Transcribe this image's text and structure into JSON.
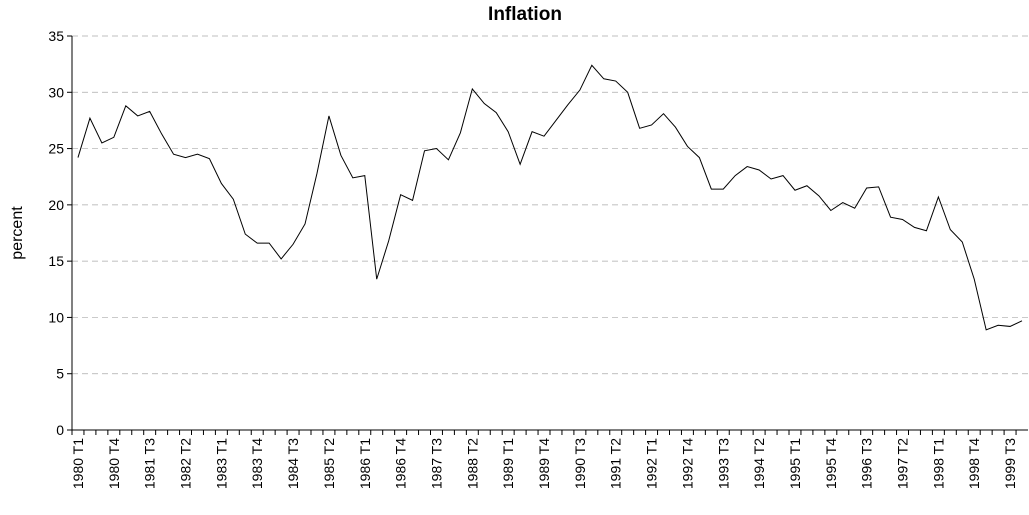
{
  "chart_data": {
    "type": "line",
    "title": "Inflation",
    "y_label": "percent",
    "categories": [
      "1980 T1",
      null,
      null,
      "1980 T4",
      null,
      null,
      "1981 T3",
      null,
      null,
      "1982 T2",
      null,
      null,
      "1983 T1",
      null,
      null,
      "1983 T4",
      null,
      null,
      "1984 T3",
      null,
      null,
      "1985 T2",
      null,
      null,
      "1986 T1",
      null,
      null,
      "1986 T4",
      null,
      null,
      "1987 T3",
      null,
      null,
      "1988 T2",
      null,
      null,
      "1989 T1",
      null,
      null,
      "1989 T4",
      null,
      null,
      "1990 T3",
      null,
      null,
      "1991 T2",
      null,
      null,
      "1992 T1",
      null,
      null,
      "1992 T4",
      null,
      null,
      "1993 T3",
      null,
      null,
      "1994 T2",
      null,
      null,
      "1995 T1",
      null,
      null,
      "1995 T4",
      null,
      null,
      "1996 T3",
      null,
      null,
      "1997 T2",
      null,
      null,
      "1998 T1",
      null,
      null,
      "1998 T4",
      null,
      null,
      "1999 T3",
      null
    ],
    "values": [
      24.2,
      27.7,
      25.5,
      26.0,
      28.8,
      27.9,
      28.3,
      26.3,
      24.5,
      24.2,
      24.5,
      24.1,
      21.9,
      20.5,
      17.4,
      16.6,
      16.6,
      15.2,
      16.5,
      18.3,
      22.8,
      27.9,
      24.4,
      22.4,
      22.6,
      13.4,
      16.8,
      20.9,
      20.4,
      24.8,
      25.0,
      24.0,
      26.4,
      30.3,
      29.0,
      28.2,
      26.5,
      23.6,
      26.5,
      26.1,
      27.5,
      28.9,
      30.2,
      32.4,
      31.2,
      31.0,
      30.0,
      26.8,
      27.1,
      28.1,
      26.9,
      25.2,
      24.2,
      21.4,
      21.4,
      22.6,
      23.4,
      23.1,
      22.3,
      22.6,
      21.3,
      21.7,
      20.8,
      19.5,
      20.2,
      19.7,
      21.5,
      21.6,
      18.9,
      18.7,
      18.0,
      17.7,
      20.7,
      17.8,
      16.7,
      13.4,
      8.9,
      9.3,
      9.2,
      9.7
    ],
    "color": "#000000",
    "ylim": [
      0,
      35
    ],
    "yticks": [
      0,
      5,
      10,
      15,
      20,
      25,
      30,
      35
    ],
    "grid": true
  }
}
